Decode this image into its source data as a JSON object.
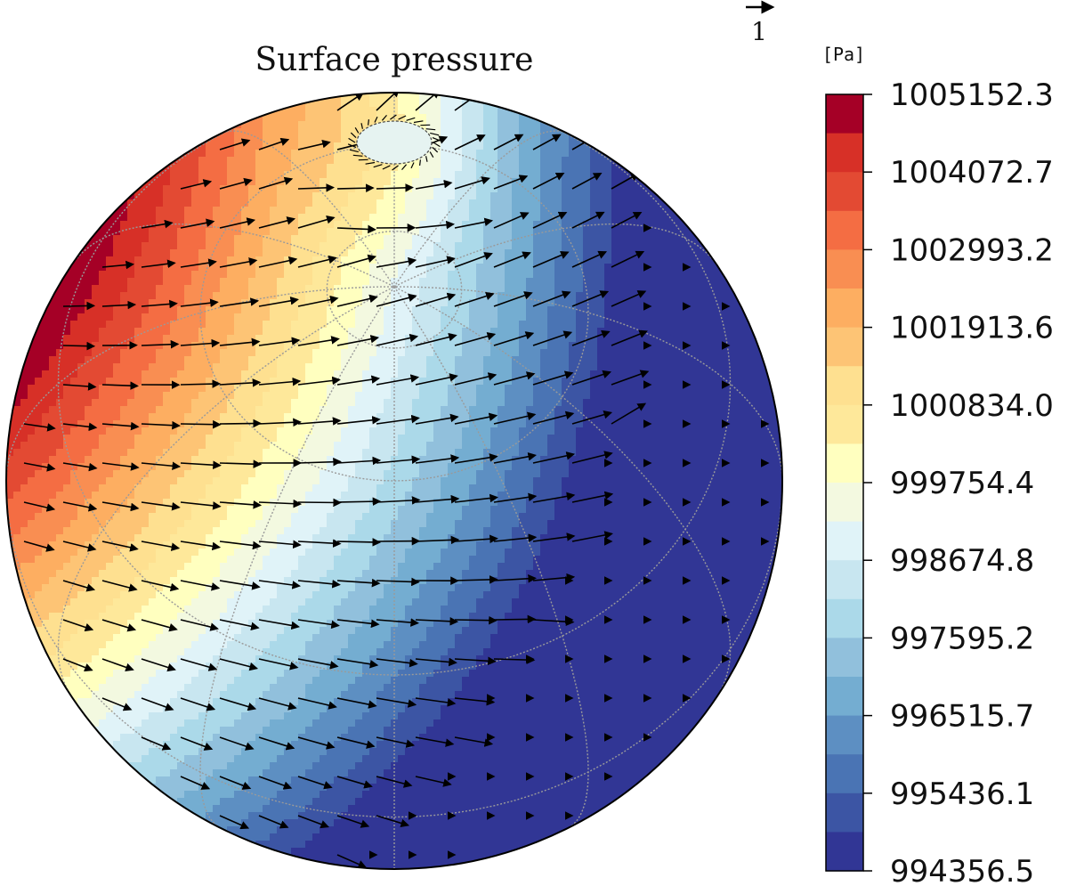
{
  "chart_data": {
    "type": "heatmap",
    "projection": "orthographic globe",
    "title": "Surface pressure",
    "colorbar": {
      "unit_label": "[Pa]",
      "range": [
        994356.5,
        1005152.3
      ],
      "n_levels": 20,
      "tick_labels": [
        "1005152.3",
        "1004072.7",
        "1002993.2",
        "1001913.6",
        "1000834.0",
        "999754.4",
        "998674.8",
        "997595.2",
        "996515.7",
        "995436.1",
        "994356.5"
      ],
      "tick_values": [
        1005152.3,
        1004072.7,
        1002993.2,
        1001913.6,
        1000834.0,
        999754.4,
        998674.8,
        997595.2,
        996515.7,
        995436.1,
        994356.5
      ],
      "colors_low_to_high": [
        "#313695",
        "#3c55a4",
        "#4a74b4",
        "#5d8fc2",
        "#74add1",
        "#91c0dc",
        "#abd9e9",
        "#c8e6f0",
        "#e0f3f8",
        "#f3f9e0",
        "#ffffbf",
        "#fee89a",
        "#fee090",
        "#fdc475",
        "#fdae61",
        "#f98e52",
        "#f46d43",
        "#e34a33",
        "#d73027",
        "#a50026"
      ]
    },
    "field_description": "Maximum pressure over upper-left region, minimum pressure over lower-right region of the visible hemisphere",
    "high_value": 1005152.3,
    "low_value": 994356.5,
    "wind_vectors": {
      "reference_label": "1",
      "general_flow": "from high-pressure region toward low-pressure region"
    },
    "grid": true,
    "legend_placement": "right"
  }
}
